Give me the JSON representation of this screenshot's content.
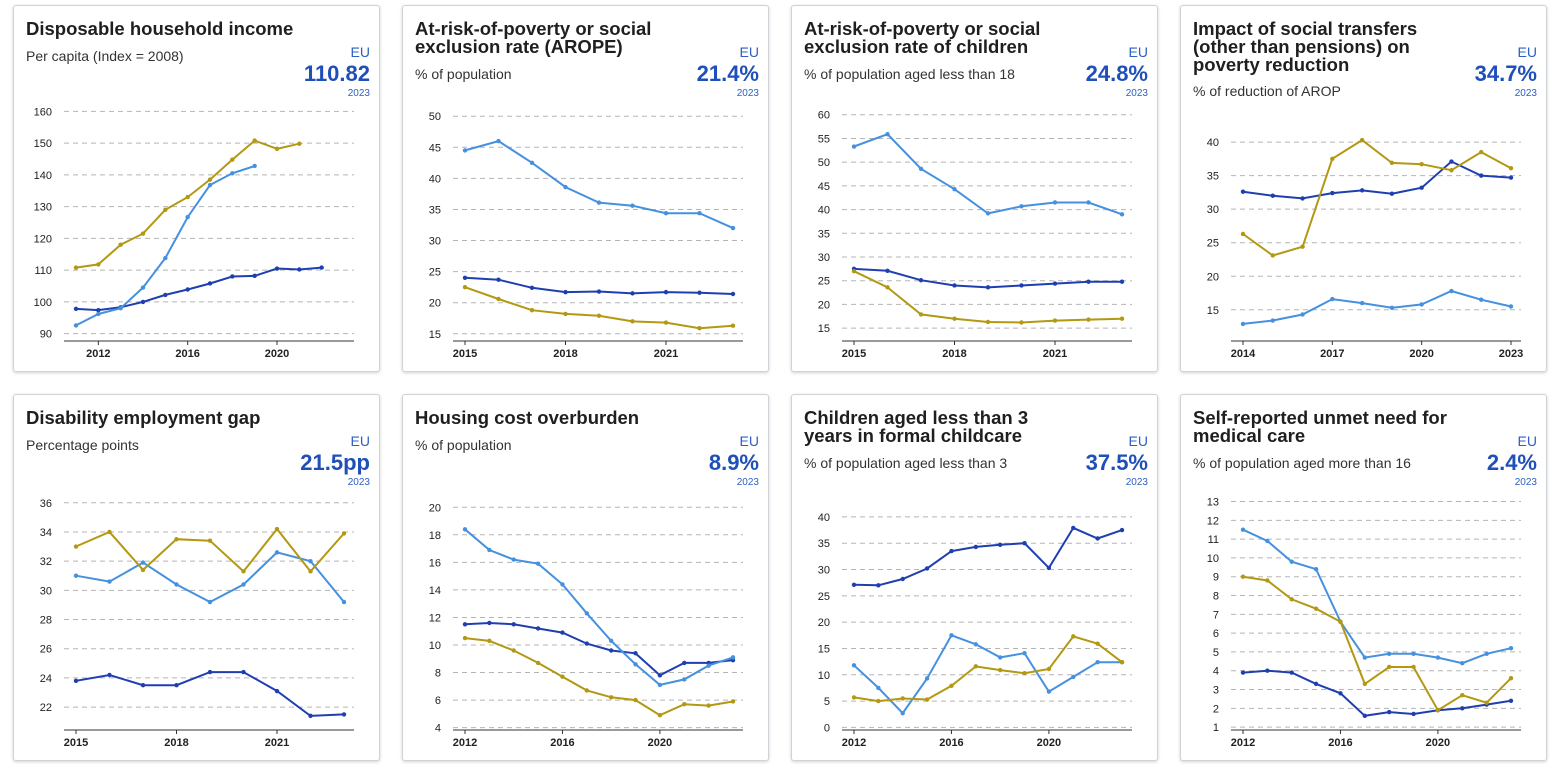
{
  "colors": {
    "dark_blue": "#1f3fb0",
    "light_blue": "#4690e0",
    "gold": "#b39812"
  },
  "cards": [
    {
      "title": "Disposable household income",
      "subtitle": "Per capita (Index = 2008)",
      "geo": "EU",
      "kpi": "110.82",
      "kpi_year": "2023"
    },
    {
      "title": "At-risk-of-poverty or social exclusion rate (AROPE)",
      "subtitle": "% of population",
      "geo": "EU",
      "kpi": "21.4%",
      "kpi_year": "2023"
    },
    {
      "title": "At-risk-of-poverty or social exclusion rate of children",
      "subtitle": "% of population aged less than 18",
      "geo": "EU",
      "kpi": "24.8%",
      "kpi_year": "2023"
    },
    {
      "title": "Impact of social transfers (other than pensions) on poverty reduction",
      "subtitle": "% of reduction of AROP",
      "geo": "EU",
      "kpi": "34.7%",
      "kpi_year": "2023"
    },
    {
      "title": "Disability employment gap",
      "subtitle": "Percentage points",
      "geo": "EU",
      "kpi": "21.5pp",
      "kpi_year": "2023"
    },
    {
      "title": "Housing cost overburden",
      "subtitle": "% of population",
      "geo": "EU",
      "kpi": "8.9%",
      "kpi_year": "2023"
    },
    {
      "title": "Children aged less than 3 years in formal childcare",
      "subtitle": "% of population aged less than 3",
      "geo": "EU",
      "kpi": "37.5%",
      "kpi_year": "2023"
    },
    {
      "title": "Self-reported unmet need for medical care",
      "subtitle": "% of population aged more than 16",
      "geo": "EU",
      "kpi": "2.4%",
      "kpi_year": "2023"
    }
  ],
  "chart_data": [
    {
      "type": "line",
      "x": [
        2011,
        2012,
        2013,
        2014,
        2015,
        2016,
        2017,
        2018,
        2019,
        2020,
        2021,
        2022,
        2023
      ],
      "xticks": [
        2012,
        2016,
        2020
      ],
      "ylim": [
        88,
        162
      ],
      "yticks": [
        90,
        100,
        110,
        120,
        130,
        140,
        150,
        160
      ],
      "series": [
        {
          "color": "dark_blue",
          "values": [
            97.8,
            97.4,
            98.3,
            100,
            102.2,
            103.9,
            105.8,
            108,
            108.2,
            110.5,
            110.2,
            110.8,
            null
          ]
        },
        {
          "color": "light_blue",
          "values": [
            92.6,
            96.2,
            98,
            104.5,
            113.8,
            126.7,
            136.8,
            140.5,
            142.8,
            null,
            null,
            null,
            null
          ]
        },
        {
          "color": "gold",
          "values": [
            110.8,
            111.8,
            118,
            121.5,
            129,
            133,
            138.5,
            144.8,
            150.8,
            148.2,
            149.8,
            null,
            null
          ]
        }
      ],
      "grid": true
    },
    {
      "type": "line",
      "x": [
        2015,
        2016,
        2017,
        2018,
        2019,
        2020,
        2021,
        2022,
        2023
      ],
      "xticks": [
        2015,
        2018,
        2021
      ],
      "ylim": [
        14,
        51
      ],
      "yticks": [
        15,
        20,
        25,
        30,
        35,
        40,
        45,
        50
      ],
      "series": [
        {
          "color": "dark_blue",
          "values": [
            24,
            23.7,
            22.4,
            21.7,
            21.8,
            21.5,
            21.7,
            21.6,
            21.4
          ]
        },
        {
          "color": "light_blue",
          "values": [
            44.5,
            46,
            42.5,
            38.6,
            36.1,
            35.6,
            34.4,
            34.4,
            32
          ]
        },
        {
          "color": "gold",
          "values": [
            22.5,
            20.6,
            18.8,
            18.2,
            17.9,
            17,
            16.8,
            15.9,
            16.3
          ]
        }
      ],
      "grid": true
    },
    {
      "type": "line",
      "x": [
        2015,
        2016,
        2017,
        2018,
        2019,
        2020,
        2021,
        2022,
        2023
      ],
      "xticks": [
        2015,
        2018,
        2021
      ],
      "ylim": [
        12.5,
        61
      ],
      "yticks": [
        15,
        20,
        25,
        30,
        35,
        40,
        45,
        50,
        55,
        60
      ],
      "series": [
        {
          "color": "dark_blue",
          "values": [
            27.5,
            27.1,
            25.1,
            24,
            23.6,
            24,
            24.4,
            24.8,
            24.8
          ]
        },
        {
          "color": "light_blue",
          "values": [
            53.3,
            55.9,
            48.6,
            44.3,
            39.2,
            40.7,
            41.5,
            41.5,
            39
          ]
        },
        {
          "color": "gold",
          "values": [
            27,
            23.6,
            17.9,
            17,
            16.3,
            16.2,
            16.6,
            16.8,
            17
          ]
        }
      ],
      "grid": true
    },
    {
      "type": "line",
      "x": [
        2014,
        2015,
        2016,
        2017,
        2018,
        2019,
        2020,
        2021,
        2022,
        2023
      ],
      "xticks": [
        2014,
        2017,
        2020,
        2023
      ],
      "ylim": [
        10.5,
        41.5
      ],
      "yticks": [
        15,
        20,
        25,
        30,
        35,
        40
      ],
      "series": [
        {
          "color": "dark_blue",
          "values": [
            32.6,
            32,
            31.6,
            32.4,
            32.8,
            32.3,
            33.2,
            37.1,
            35,
            34.7
          ]
        },
        {
          "color": "light_blue",
          "values": [
            12.9,
            13.4,
            14.3,
            16.6,
            16,
            15.3,
            15.8,
            17.8,
            16.5,
            15.5
          ]
        },
        {
          "color": "gold",
          "values": [
            26.3,
            23.1,
            24.4,
            37.5,
            40.3,
            36.9,
            36.7,
            35.8,
            38.5,
            36.1
          ]
        }
      ],
      "grid": true
    },
    {
      "type": "line",
      "x": [
        2015,
        2016,
        2017,
        2018,
        2019,
        2020,
        2021,
        2022,
        2023
      ],
      "xticks": [
        2015,
        2018,
        2021
      ],
      "ylim": [
        20.5,
        36.6
      ],
      "yticks": [
        22,
        24,
        26,
        28,
        30,
        32,
        34,
        36
      ],
      "series": [
        {
          "color": "dark_blue",
          "values": [
            23.8,
            24.2,
            23.5,
            23.5,
            24.4,
            24.4,
            23.1,
            21.4,
            21.5
          ]
        },
        {
          "color": "light_blue",
          "values": [
            31,
            30.6,
            31.9,
            30.4,
            29.2,
            30.4,
            32.6,
            32,
            29.2
          ]
        },
        {
          "color": "gold",
          "values": [
            33,
            34,
            31.4,
            33.5,
            33.4,
            31.3,
            34.2,
            31.3,
            33.9
          ]
        }
      ],
      "grid": true
    },
    {
      "type": "line",
      "x": [
        2012,
        2013,
        2014,
        2015,
        2016,
        2017,
        2018,
        2019,
        2020,
        2021,
        2022,
        2023
      ],
      "xticks": [
        2012,
        2016,
        2020
      ],
      "ylim": [
        3.9,
        20.6
      ],
      "yticks": [
        4,
        6,
        8,
        10,
        12,
        14,
        16,
        18,
        20
      ],
      "series": [
        {
          "color": "dark_blue",
          "values": [
            11.5,
            11.6,
            11.5,
            11.2,
            10.9,
            10.1,
            9.6,
            9.4,
            7.8,
            8.7,
            8.7,
            8.9
          ]
        },
        {
          "color": "light_blue",
          "values": [
            18.4,
            16.9,
            16.2,
            15.9,
            14.4,
            12.3,
            10.3,
            8.6,
            7.1,
            7.5,
            8.5,
            9.1
          ]
        },
        {
          "color": "gold",
          "values": [
            10.5,
            10.3,
            9.6,
            8.7,
            7.7,
            6.7,
            6.2,
            6,
            4.9,
            5.7,
            5.6,
            5.9
          ]
        }
      ],
      "grid": true
    },
    {
      "type": "line",
      "x": [
        2012,
        2013,
        2014,
        2015,
        2016,
        2017,
        2018,
        2019,
        2020,
        2021,
        2022,
        2023
      ],
      "xticks": [
        2012,
        2016,
        2020
      ],
      "ylim": [
        -0.3,
        41.5
      ],
      "yticks": [
        0,
        5,
        10,
        15,
        20,
        25,
        30,
        35,
        40
      ],
      "series": [
        {
          "color": "dark_blue",
          "values": [
            27.1,
            27,
            28.2,
            30.2,
            33.5,
            34.3,
            34.7,
            35,
            30.3,
            37.9,
            35.9,
            37.5
          ]
        },
        {
          "color": "light_blue",
          "values": [
            11.8,
            7.5,
            2.7,
            9.3,
            17.5,
            15.8,
            13.3,
            14.1,
            6.8,
            9.6,
            12.4,
            12.4
          ]
        },
        {
          "color": "gold",
          "values": [
            5.7,
            5,
            5.5,
            5.3,
            7.9,
            11.6,
            10.9,
            10.3,
            11.1,
            17.3,
            15.9,
            12.4
          ]
        }
      ],
      "grid": true
    },
    {
      "type": "line",
      "x": [
        2012,
        2013,
        2014,
        2015,
        2016,
        2017,
        2018,
        2019,
        2020,
        2021,
        2022,
        2023
      ],
      "xticks": [
        2012,
        2016,
        2020
      ],
      "ylim": [
        0.9,
        13.4
      ],
      "yticks": [
        1,
        2,
        3,
        4,
        5,
        6,
        7,
        8,
        9,
        10,
        11,
        12,
        13
      ],
      "series": [
        {
          "color": "dark_blue",
          "values": [
            3.9,
            4,
            3.9,
            3.3,
            2.8,
            1.6,
            1.8,
            1.7,
            1.9,
            2,
            2.2,
            2.4
          ]
        },
        {
          "color": "light_blue",
          "values": [
            11.5,
            10.9,
            9.8,
            9.4,
            6.6,
            4.7,
            4.9,
            4.9,
            4.7,
            4.4,
            4.9,
            5.2
          ]
        },
        {
          "color": "gold",
          "values": [
            9,
            8.8,
            7.8,
            7.3,
            6.6,
            3.3,
            4.2,
            4.2,
            1.9,
            2.7,
            2.3,
            3.6
          ]
        }
      ],
      "grid": true
    }
  ]
}
